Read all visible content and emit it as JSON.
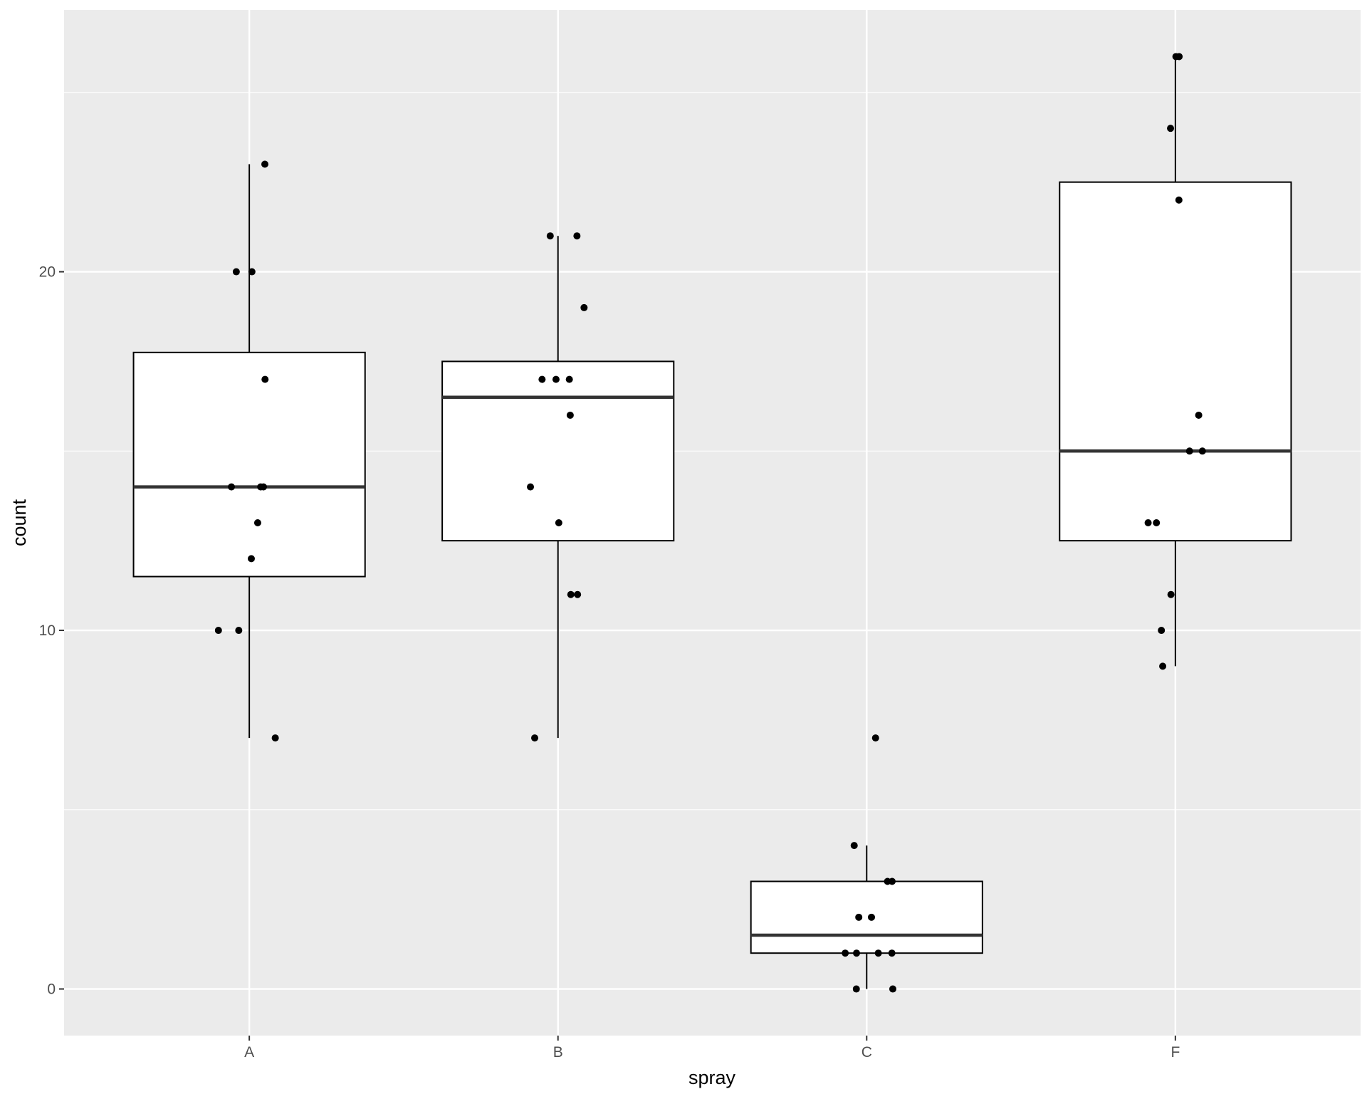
{
  "chart_data": {
    "type": "boxplot",
    "xlabel": "spray",
    "ylabel": "count",
    "categories": [
      "A",
      "B",
      "C",
      "F"
    ],
    "ylim": [
      -1.3,
      27.3
    ],
    "y_ticks": [
      0,
      10,
      20
    ],
    "y_tick_labels": [
      "0",
      "10",
      "20"
    ],
    "grid": true,
    "colors": {
      "panel": "#EBEBEB",
      "grid_major": "#FFFFFF",
      "box_fill": "#FFFFFF",
      "box_stroke": "#000000",
      "median": "#333333",
      "point": "#000000",
      "axis_text": "#4D4D4D",
      "title_text": "#000000"
    },
    "boxes": [
      {
        "category": "A",
        "lower_whisker": 7,
        "q1": 11.5,
        "median": 14,
        "q3": 17.75,
        "upper_whisker": 23
      },
      {
        "category": "B",
        "lower_whisker": 7,
        "q1": 12.5,
        "median": 16.5,
        "q3": 17.5,
        "upper_whisker": 21
      },
      {
        "category": "C",
        "lower_whisker": 0,
        "q1": 1,
        "median": 1.5,
        "q3": 3,
        "upper_whisker": 4
      },
      {
        "category": "F",
        "lower_whisker": 9,
        "q1": 12.5,
        "median": 15,
        "q3": 22.5,
        "upper_whisker": 26
      }
    ],
    "points": [
      {
        "category": "A",
        "values": [
          10,
          7,
          20,
          14,
          14,
          12,
          10,
          23,
          17,
          20,
          14,
          13
        ]
      },
      {
        "category": "B",
        "values": [
          11,
          17,
          21,
          11,
          16,
          14,
          17,
          17,
          19,
          21,
          7,
          13
        ]
      },
      {
        "category": "C",
        "values": [
          0,
          1,
          7,
          2,
          3,
          1,
          2,
          1,
          3,
          0,
          1,
          4
        ]
      },
      {
        "category": "F",
        "values": [
          11,
          9,
          15,
          22,
          15,
          16,
          13,
          10,
          26,
          26,
          24,
          13
        ]
      }
    ]
  }
}
